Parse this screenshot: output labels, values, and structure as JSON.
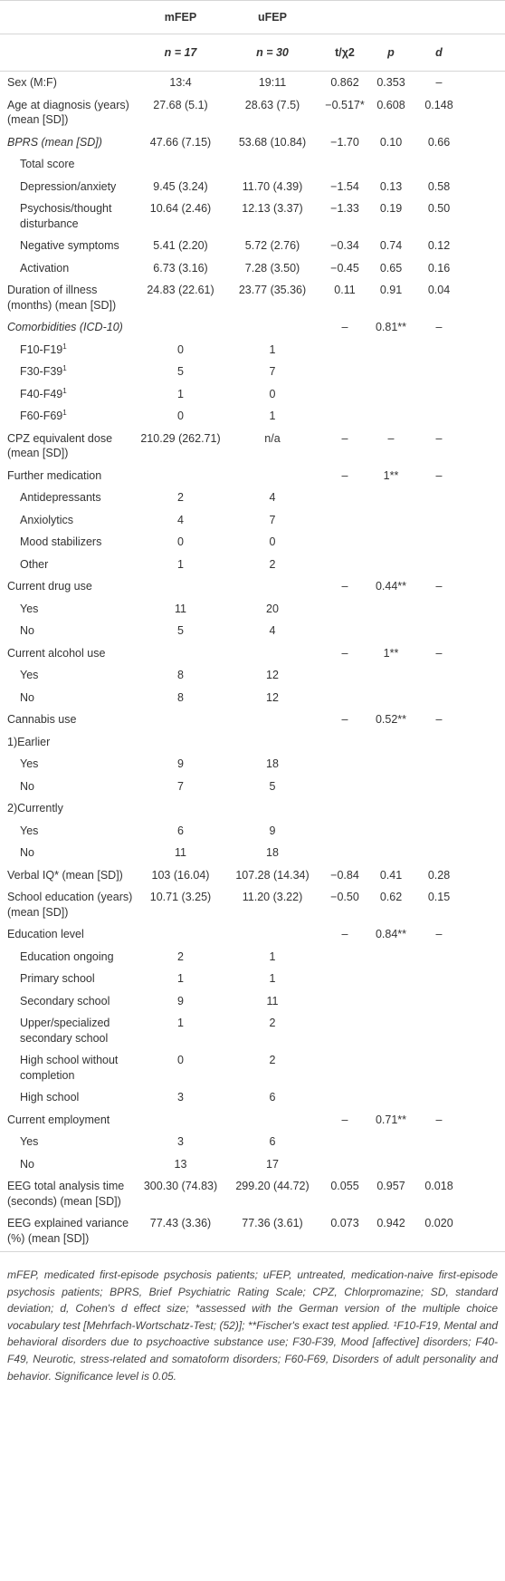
{
  "table": {
    "header_groups": [
      "mFEP",
      "uFEP"
    ],
    "header": [
      "n = 17",
      "n = 30",
      "t/χ2",
      "p",
      "d"
    ],
    "rows": [
      {
        "label": "Sex (M:F)",
        "cells": [
          "13:4",
          "19:11",
          "0.862",
          "0.353",
          "–"
        ]
      },
      {
        "label": "Age at diagnosis (years) (mean [SD])",
        "cells": [
          "27.68 (5.1)",
          "28.63 (7.5)",
          "−0.517*",
          "0.608",
          "0.148"
        ]
      },
      {
        "label": "BPRS (mean [SD])",
        "italic": true,
        "cells": [
          "47.66 (7.15)",
          "53.68 (10.84)",
          "−1.70",
          "0.10",
          "0.66"
        ]
      },
      {
        "label": "Total score",
        "indent": true,
        "cells": [
          null,
          null,
          null,
          null,
          null
        ]
      },
      {
        "label": "Depression/anxiety",
        "indent": true,
        "cells": [
          "9.45 (3.24)",
          "11.70 (4.39)",
          "−1.54",
          "0.13",
          "0.58"
        ]
      },
      {
        "label": "Psychosis/thought disturbance",
        "indent": true,
        "cells": [
          "10.64 (2.46)",
          "12.13 (3.37)",
          "−1.33",
          "0.19",
          "0.50"
        ]
      },
      {
        "label": "Negative symptoms",
        "indent": true,
        "cells": [
          "5.41 (2.20)",
          "5.72 (2.76)",
          "−0.34",
          "0.74",
          "0.12"
        ]
      },
      {
        "label": "Activation",
        "indent": true,
        "cells": [
          "6.73 (3.16)",
          "7.28 (3.50)",
          "−0.45",
          "0.65",
          "0.16"
        ]
      },
      {
        "label": "Duration of illness (months) (mean [SD])",
        "cells": [
          "24.83 (22.61)",
          "23.77 (35.36)",
          "0.11",
          "0.91",
          "0.04"
        ]
      },
      {
        "label": "Comorbidities (ICD-10)",
        "italic": true,
        "cells": [
          null,
          null,
          "–",
          "0.81**",
          "–"
        ]
      },
      {
        "label": "F10-F19",
        "sup": "1",
        "indent": true,
        "cells": [
          "0",
          "1",
          null,
          null,
          null
        ]
      },
      {
        "label": "F30-F39",
        "sup": "1",
        "indent": true,
        "cells": [
          "5",
          "7",
          null,
          null,
          null
        ]
      },
      {
        "label": "F40-F49",
        "sup": "1",
        "indent": true,
        "cells": [
          "1",
          "0",
          null,
          null,
          null
        ]
      },
      {
        "label": "F60-F69",
        "sup": "1",
        "indent": true,
        "cells": [
          "0",
          "1",
          null,
          null,
          null
        ]
      },
      {
        "label": "CPZ equivalent dose (mean [SD])",
        "cells": [
          "210.29 (262.71)",
          "n/a",
          "–",
          "–",
          "–"
        ]
      },
      {
        "label": "Further medication",
        "cells": [
          null,
          null,
          "–",
          "1**",
          "–"
        ]
      },
      {
        "label": "Antidepressants",
        "indent": true,
        "cells": [
          "2",
          "4",
          null,
          null,
          null
        ]
      },
      {
        "label": "Anxiolytics",
        "indent": true,
        "cells": [
          "4",
          "7",
          null,
          null,
          null
        ]
      },
      {
        "label": "Mood stabilizers",
        "indent": true,
        "cells": [
          "0",
          "0",
          null,
          null,
          null
        ]
      },
      {
        "label": "Other",
        "indent": true,
        "cells": [
          "1",
          "2",
          null,
          null,
          null
        ]
      },
      {
        "label": "Current drug use",
        "cells": [
          null,
          null,
          "–",
          "0.44**",
          "–"
        ]
      },
      {
        "label": "Yes",
        "indent": true,
        "cells": [
          "11",
          "20",
          null,
          null,
          null
        ]
      },
      {
        "label": "No",
        "indent": true,
        "cells": [
          "5",
          "4",
          null,
          null,
          null
        ]
      },
      {
        "label": "Current alcohol use",
        "cells": [
          null,
          null,
          "–",
          "1**",
          "–"
        ]
      },
      {
        "label": "Yes",
        "indent": true,
        "cells": [
          "8",
          "12",
          null,
          null,
          null
        ]
      },
      {
        "label": "No",
        "indent": true,
        "cells": [
          "8",
          "12",
          null,
          null,
          null
        ]
      },
      {
        "label": "Cannabis use",
        "cells": [
          null,
          null,
          "–",
          "0.52**",
          "–"
        ]
      },
      {
        "label": "1)Earlier",
        "cells": [
          null,
          null,
          null,
          null,
          null
        ]
      },
      {
        "label": "Yes",
        "indent": true,
        "cells": [
          "9",
          "18",
          null,
          null,
          null
        ]
      },
      {
        "label": "No",
        "indent": true,
        "cells": [
          "7",
          "5",
          null,
          null,
          null
        ]
      },
      {
        "label": "2)Currently",
        "cells": [
          null,
          null,
          null,
          null,
          null
        ]
      },
      {
        "label": "Yes",
        "indent": true,
        "cells": [
          "6",
          "9",
          null,
          null,
          null
        ]
      },
      {
        "label": "No",
        "indent": true,
        "cells": [
          "11",
          "18",
          null,
          null,
          null
        ]
      },
      {
        "label": "Verbal IQ* (mean [SD])",
        "cells": [
          "103 (16.04)",
          "107.28 (14.34)",
          "−0.84",
          "0.41",
          "0.28"
        ]
      },
      {
        "label": "School education (years) (mean [SD])",
        "cells": [
          "10.71 (3.25)",
          "11.20 (3.22)",
          "−0.50",
          "0.62",
          "0.15"
        ]
      },
      {
        "label": "Education level",
        "cells": [
          null,
          null,
          "–",
          "0.84**",
          "–"
        ]
      },
      {
        "label": "Education ongoing",
        "indent": true,
        "cells": [
          "2",
          "1",
          null,
          null,
          null
        ]
      },
      {
        "label": "Primary school",
        "indent": true,
        "cells": [
          "1",
          "1",
          null,
          null,
          null
        ]
      },
      {
        "label": "Secondary school",
        "indent": true,
        "cells": [
          "9",
          "11",
          null,
          null,
          null
        ]
      },
      {
        "label": "Upper/specialized secondary school",
        "indent": true,
        "cells": [
          "1",
          "2",
          null,
          null,
          null
        ]
      },
      {
        "label": "High school without completion",
        "indent": true,
        "cells": [
          "0",
          "2",
          null,
          null,
          null
        ]
      },
      {
        "label": "High school",
        "indent": true,
        "cells": [
          "3",
          "6",
          null,
          null,
          null
        ]
      },
      {
        "label": "Current employment",
        "cells": [
          null,
          null,
          "–",
          "0.71**",
          "–"
        ]
      },
      {
        "label": "Yes",
        "indent": true,
        "cells": [
          "3",
          "6",
          null,
          null,
          null
        ]
      },
      {
        "label": "No",
        "indent": true,
        "cells": [
          "13",
          "17",
          null,
          null,
          null
        ]
      },
      {
        "label": "EEG total analysis time (seconds) (mean [SD])",
        "cells": [
          "300.30 (74.83)",
          "299.20 (44.72)",
          "0.055",
          "0.957",
          "0.018"
        ]
      },
      {
        "label": "EEG explained variance (%) (mean [SD])",
        "cells": [
          "77.43 (3.36)",
          "77.36 (3.61)",
          "0.073",
          "0.942",
          "0.020"
        ]
      }
    ]
  },
  "footnote": "mFEP, medicated first-episode psychosis patients; uFEP, untreated, medication-naive first-episode psychosis patients; BPRS, Brief Psychiatric Rating Scale; CPZ, Chlorpromazine; SD, standard deviation; d, Cohen's d effect size; *assessed with the German version of the multiple choice vocabulary test [Mehrfach-Wortschatz-Test; (52)]; **Fischer's exact test applied. ¹F10-F19, Mental and behavioral disorders due to psychoactive substance use; F30-F39, Mood [affective] disorders; F40-F49, Neurotic, stress-related and somatoform disorders; F60-F69, Disorders of adult personality and behavior. Significance level is 0.05."
}
